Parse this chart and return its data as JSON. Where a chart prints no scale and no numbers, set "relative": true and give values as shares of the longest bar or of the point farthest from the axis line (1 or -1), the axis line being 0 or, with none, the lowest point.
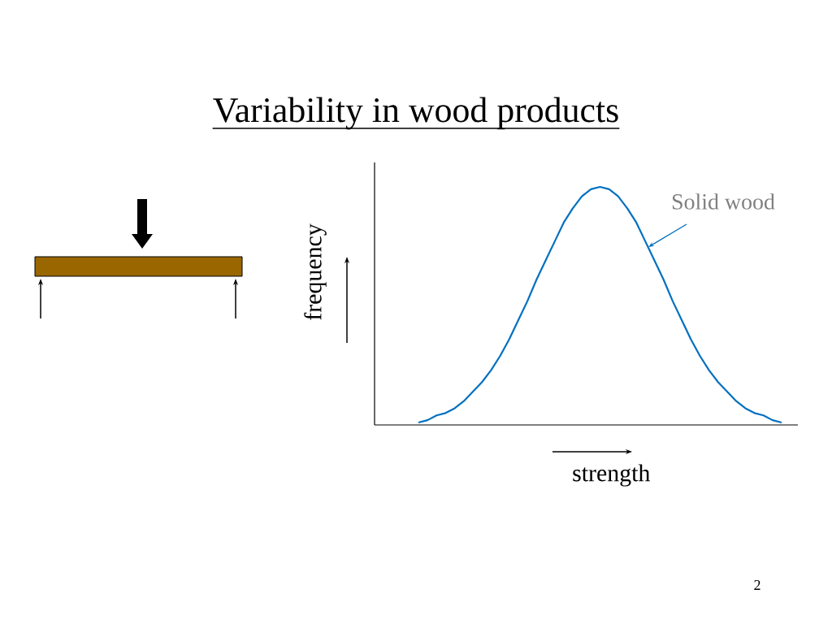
{
  "chart_data": {
    "type": "line",
    "title": "Variability in wood products",
    "xlabel": "strength",
    "ylabel": "frequency",
    "relative": true,
    "marker": "none",
    "categories": [
      null,
      null,
      null,
      null,
      null,
      null,
      null,
      null,
      null,
      null,
      null,
      null,
      null,
      null,
      null,
      null,
      null,
      null,
      null,
      null,
      null,
      null,
      null,
      null,
      null,
      null,
      null,
      null,
      null,
      null,
      null,
      null,
      null,
      null,
      null,
      null,
      null,
      null,
      null,
      null,
      null
    ],
    "series": [
      {
        "name": "Solid wood",
        "color": "#0070c0",
        "values": [
          0.01,
          0.02,
          0.04,
          0.05,
          0.07,
          0.1,
          0.14,
          0.18,
          0.23,
          0.29,
          0.36,
          0.44,
          0.52,
          0.61,
          0.69,
          0.77,
          0.85,
          0.91,
          0.96,
          0.99,
          1,
          0.99,
          0.96,
          0.91,
          0.85,
          0.77,
          0.69,
          0.61,
          0.52,
          0.44,
          0.36,
          0.29,
          0.23,
          0.18,
          0.14,
          0.1,
          0.07,
          0.05,
          0.04,
          0.02,
          0.01
        ]
      }
    ],
    "annotations": [
      "2"
    ]
  }
}
